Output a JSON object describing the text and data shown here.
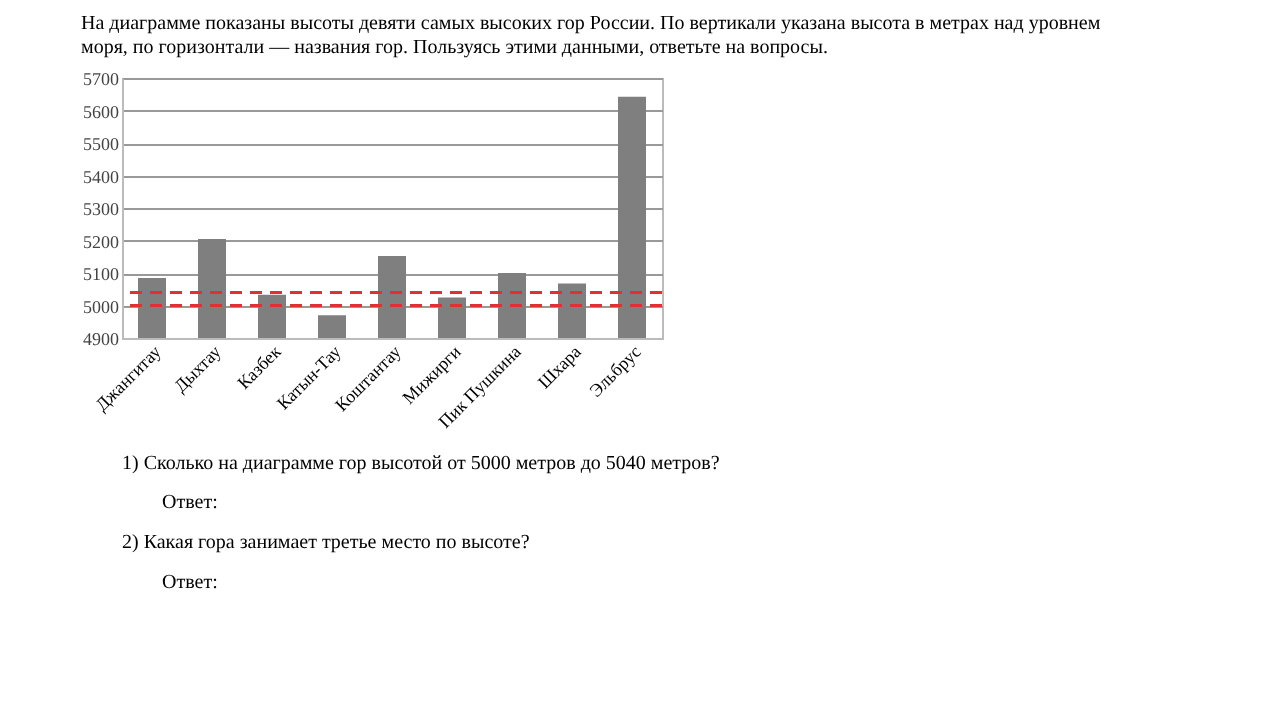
{
  "chart_data": {
    "type": "bar",
    "title": "На диаграмме показаны высоты девяти самых высоких гор России. По вертикали указана высота в метрах над уровнем моря, по горизонтали — названия гор. Пользуясь этими данными, ответьте на вопросы.",
    "categories": [
      "Джангитау",
      "Дыхтау",
      "Казбек",
      "Катын-Тау",
      "Коштантау",
      "Мижирги",
      "Пик Пушкина",
      "Шхара",
      "Эльбрус"
    ],
    "values": [
      5085,
      5205,
      5033,
      4970,
      5152,
      5025,
      5100,
      5068,
      5642
    ],
    "color": "#7f7f7f",
    "ylim": [
      4900,
      5700
    ],
    "yticks": [
      4900,
      5000,
      5100,
      5200,
      5300,
      5400,
      5500,
      5600,
      5700
    ],
    "grid": "y",
    "ref_lines": [
      {
        "axis": "y",
        "value": 5000,
        "color": "#e03030",
        "line_style": "dashed"
      },
      {
        "axis": "y",
        "value": 5040,
        "color": "#e03030",
        "line_style": "dashed"
      }
    ],
    "annotations": [
      "1) Сколько на диаграмме гор высотой от 5000 метров до 5040 метров?",
      "Ответ:",
      "2) Какая гора занимает третье место по высоте?",
      "Ответ:"
    ]
  }
}
